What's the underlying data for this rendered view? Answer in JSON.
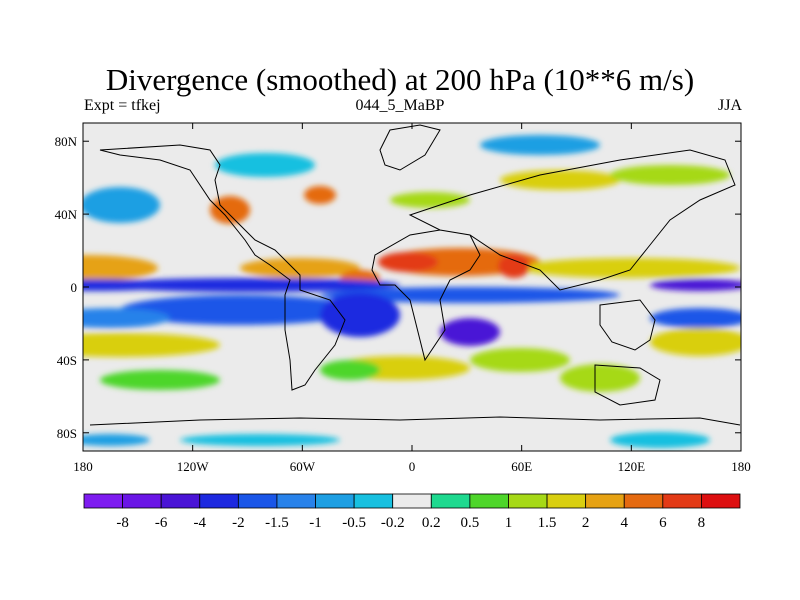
{
  "chart_data": {
    "type": "heatmap",
    "title": "Divergence (smoothed) at 200 hPa (10**6 m/s)",
    "subtitle_left": "Expt = tfkej",
    "subtitle_center": "044_5_MaBP",
    "subtitle_right": "JJA",
    "x_ticks": [
      {
        "value": -180,
        "label": "180"
      },
      {
        "value": -120,
        "label": "120W"
      },
      {
        "value": -60,
        "label": "60W"
      },
      {
        "value": 0,
        "label": "0"
      },
      {
        "value": 60,
        "label": "60E"
      },
      {
        "value": 120,
        "label": "120E"
      },
      {
        "value": 180,
        "label": "180"
      }
    ],
    "y_ticks": [
      {
        "value": 80,
        "label": "80N"
      },
      {
        "value": 40,
        "label": "40N"
      },
      {
        "value": 0,
        "label": "0"
      },
      {
        "value": -40,
        "label": "40S"
      },
      {
        "value": -80,
        "label": "80S"
      }
    ],
    "xlim": [
      -180,
      180
    ],
    "ylim": [
      -90,
      90
    ],
    "colorbar": {
      "colors": [
        "#7e1cf0",
        "#6a16e6",
        "#4a14d6",
        "#1d29e0",
        "#1a56e8",
        "#2882ea",
        "#1e9fe3",
        "#18c0e0",
        "#ebebeb",
        "#1ed98f",
        "#4ed62a",
        "#a6d917",
        "#d9cf10",
        "#e6a213",
        "#e56a10",
        "#e33a16",
        "#dd0f10"
      ],
      "labels": [
        "-8",
        "-6",
        "-4",
        "-2",
        "-1.5",
        "-1",
        "-0.5",
        "-0.2",
        "0.2",
        "0.5",
        "1",
        "1.5",
        "2",
        "4",
        "6",
        "8"
      ]
    },
    "bands": [
      {
        "lat": 15,
        "value": 2.5
      },
      {
        "lat": 0,
        "value": -3
      },
      {
        "lat": -17,
        "value": -2.5
      },
      {
        "lat": -35,
        "value": 1
      }
    ]
  }
}
